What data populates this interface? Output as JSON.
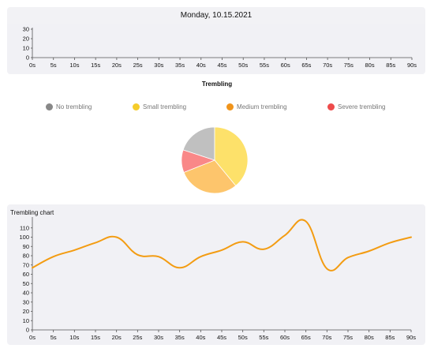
{
  "header": {
    "date": "Monday, 10.15.2021"
  },
  "top_chart": {
    "chart_data": {
      "type": "line",
      "x": [
        "0s",
        "5s",
        "10s",
        "15s",
        "20s",
        "25s",
        "30s",
        "35s",
        "40s",
        "45s",
        "50s",
        "55s",
        "60s",
        "65s",
        "70s",
        "75s",
        "80s",
        "85s",
        "90s"
      ],
      "yticks": [
        0,
        10,
        20,
        30
      ],
      "ylim": [
        0,
        30
      ],
      "series": []
    }
  },
  "trembling": {
    "title": "Trembling",
    "legend": [
      {
        "label": "No trembling",
        "color": "#888888"
      },
      {
        "label": "Small trembling",
        "color": "#f5cc2b"
      },
      {
        "label": "Medium trembling",
        "color": "#f0941b"
      },
      {
        "label": "Severe trembling",
        "color": "#ee4b4b"
      }
    ],
    "chart_data": {
      "type": "pie",
      "labels": [
        "No trembling",
        "Small trembling",
        "Medium trembling",
        "Severe trembling"
      ],
      "values": [
        20,
        39,
        30,
        11
      ],
      "colors": [
        "#c0c0c0",
        "#fde16a",
        "#fdc56c",
        "#f98888"
      ]
    }
  },
  "trembling_chart": {
    "title": "Trembling chart",
    "chart_data": {
      "type": "line",
      "x": [
        "0s",
        "5s",
        "10s",
        "15s",
        "20s",
        "25s",
        "30s",
        "35s",
        "40s",
        "45s",
        "50s",
        "55s",
        "60s",
        "65s",
        "70s",
        "75s",
        "80s",
        "85s",
        "90s"
      ],
      "yticks": [
        0,
        10,
        20,
        30,
        40,
        50,
        60,
        70,
        80,
        90,
        100,
        110
      ],
      "ylim": [
        0,
        120
      ],
      "series": [
        {
          "values": [
            67,
            79,
            86,
            94,
            100,
            81,
            79,
            67,
            79,
            86,
            95,
            87,
            102,
            117,
            66,
            78,
            85,
            94,
            100
          ],
          "color": "#f39c12"
        }
      ]
    }
  }
}
